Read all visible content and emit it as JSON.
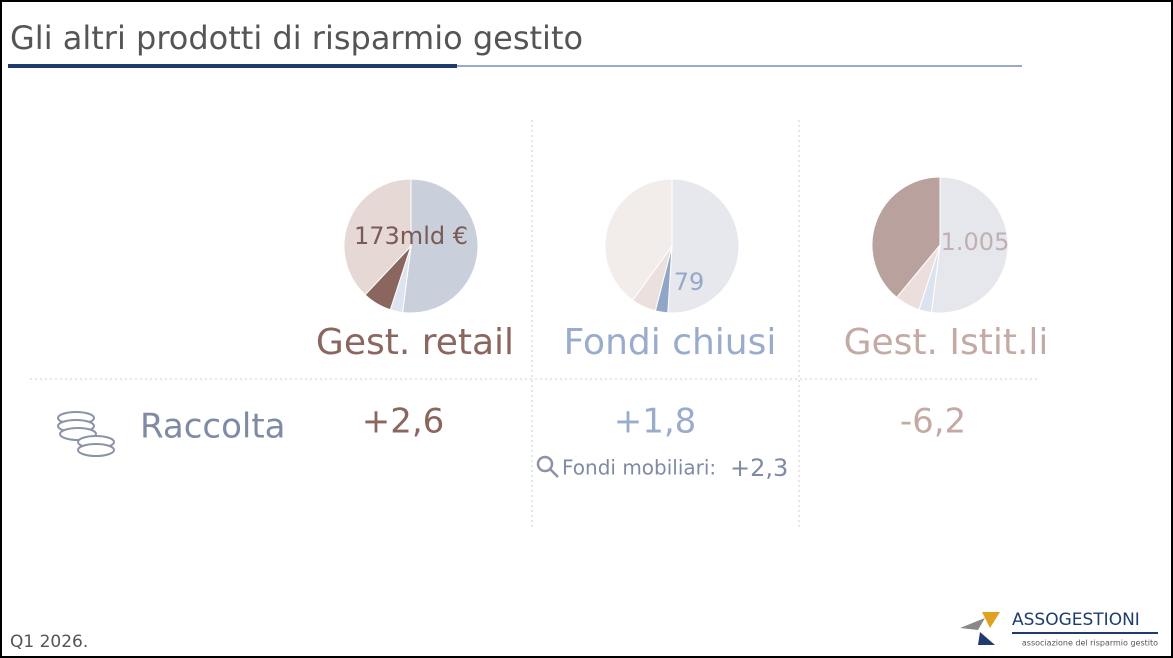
{
  "header": {
    "title": "Gli altri prodotti di risparmio gestito"
  },
  "chart_data": [
    {
      "type": "pie",
      "title": "Gest. retail",
      "title_color": "#8b665e",
      "annotation": "173mld €",
      "annotation_color": "#7a5a55",
      "values": [
        52,
        3,
        7,
        38
      ],
      "colors": [
        "#c9d0dc",
        "#dde4ef",
        "#8b665e",
        "#e5d8d5"
      ]
    },
    {
      "type": "pie",
      "title": "Fondi chiusi",
      "title_color": "#9aaccc",
      "annotation": "79",
      "annotation_color": "#95a8c8",
      "values": [
        51,
        3,
        6,
        40
      ],
      "colors": [
        "#e6e8ee",
        "#91a6c6",
        "#ece0de",
        "#f2eceb"
      ]
    },
    {
      "type": "pie",
      "title": "Gest. Istit.li",
      "title_color": "#c4aaa5",
      "annotation": "1.005",
      "annotation_color": "#c0b0b0",
      "values": [
        52,
        3,
        6,
        39
      ],
      "colors": [
        "#e6e7ec",
        "#dbe3ee",
        "#ecdedc",
        "#b9a29d"
      ]
    }
  ],
  "table": {
    "row_label": "Raccolta",
    "values": [
      "+2,6",
      "+1,8",
      "-6,2"
    ],
    "note_label": "Fondi mobiliari:",
    "note_value": "+2,3"
  },
  "footer": {
    "period": "Q1 2026.",
    "logo": "ASSOGESTIONI",
    "logo_subtitle": "associazione del risparmio gestito"
  }
}
